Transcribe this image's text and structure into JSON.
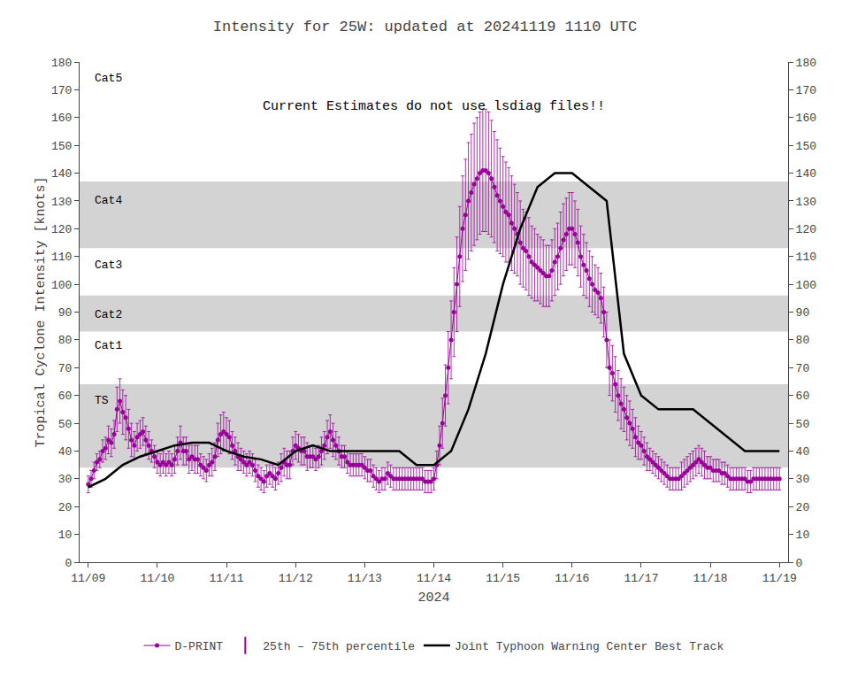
{
  "chart_data": {
    "type": "line",
    "title": "Intensity for 25W: updated at 20241119 1110 UTC",
    "xlabel": "2024",
    "ylabel": "Tropical Cyclone Intensity [knots]",
    "annotation": "Current Estimates do not use lsdiag files!!",
    "xlim": [
      -3,
      243
    ],
    "xticks": [
      {
        "value": 0,
        "label": "11/09"
      },
      {
        "value": 24,
        "label": "11/10"
      },
      {
        "value": 48,
        "label": "11/11"
      },
      {
        "value": 72,
        "label": "11/12"
      },
      {
        "value": 96,
        "label": "11/13"
      },
      {
        "value": 120,
        "label": "11/14"
      },
      {
        "value": 144,
        "label": "11/15"
      },
      {
        "value": 168,
        "label": "11/16"
      },
      {
        "value": 192,
        "label": "11/17"
      },
      {
        "value": 216,
        "label": "11/18"
      },
      {
        "value": 240,
        "label": "11/19"
      }
    ],
    "ylim": [
      0,
      180
    ],
    "yticks": [
      0,
      10,
      20,
      30,
      40,
      50,
      60,
      70,
      80,
      90,
      100,
      110,
      120,
      130,
      140,
      150,
      160,
      170,
      180
    ],
    "y2lim": [
      0,
      180
    ],
    "y2ticks": [
      0,
      10,
      20,
      30,
      40,
      50,
      60,
      70,
      80,
      90,
      100,
      110,
      120,
      130,
      140,
      150,
      160,
      170,
      180
    ],
    "grid": false,
    "legend": "bottom",
    "bands": {
      "color": "#d3d3d3",
      "ranges": [
        [
          34,
          64
        ],
        [
          83,
          96
        ],
        [
          113,
          137
        ]
      ]
    },
    "labels": [
      {
        "text": "TS",
        "x": 1.5,
        "y": 58
      },
      {
        "text": "Cat1",
        "x": 1.5,
        "y": 78
      },
      {
        "text": "Cat2",
        "x": 1.5,
        "y": 89
      },
      {
        "text": "Cat3",
        "x": 1.5,
        "y": 107
      },
      {
        "text": "Cat4",
        "x": 1.5,
        "y": 130
      },
      {
        "text": "Cat5",
        "x": 1.5,
        "y": 174
      }
    ],
    "series": [
      {
        "name": "D-PRINT",
        "color": "#990099",
        "marker": "circle",
        "error_name": "25th – 75th percentile",
        "x": [
          0,
          1,
          2,
          3,
          4,
          5,
          6,
          7,
          8,
          9,
          10,
          11,
          12,
          13,
          14,
          15,
          16,
          17,
          18,
          19,
          20,
          21,
          22,
          23,
          24,
          25,
          26,
          27,
          28,
          29,
          30,
          31,
          32,
          33,
          34,
          35,
          36,
          37,
          38,
          39,
          40,
          41,
          42,
          43,
          44,
          45,
          46,
          47,
          48,
          49,
          50,
          51,
          52,
          53,
          54,
          55,
          56,
          57,
          58,
          59,
          60,
          61,
          62,
          63,
          64,
          65,
          66,
          67,
          68,
          69,
          70,
          71,
          72,
          73,
          74,
          75,
          76,
          77,
          78,
          79,
          80,
          81,
          82,
          83,
          84,
          85,
          86,
          87,
          88,
          89,
          90,
          91,
          92,
          93,
          94,
          95,
          96,
          97,
          98,
          99,
          100,
          101,
          102,
          103,
          104,
          105,
          106,
          107,
          108,
          109,
          110,
          111,
          112,
          113,
          114,
          115,
          116,
          117,
          118,
          119,
          120,
          121,
          122,
          123,
          124,
          125,
          126,
          127,
          128,
          129,
          130,
          131,
          132,
          133,
          134,
          135,
          136,
          137,
          138,
          139,
          140,
          141,
          142,
          143,
          144,
          145,
          146,
          147,
          148,
          149,
          150,
          151,
          152,
          153,
          154,
          155,
          156,
          157,
          158,
          159,
          160,
          161,
          162,
          163,
          164,
          165,
          166,
          167,
          168,
          169,
          170,
          171,
          172,
          173,
          174,
          175,
          176,
          177,
          178,
          179,
          180,
          181,
          182,
          183,
          184,
          185,
          186,
          187,
          188,
          189,
          190,
          191,
          192,
          193,
          194,
          195,
          196,
          197,
          198,
          199,
          200,
          201,
          202,
          203,
          204,
          205,
          206,
          207,
          208,
          209,
          210,
          211,
          212,
          213,
          214,
          215,
          216,
          217,
          218,
          219,
          220,
          221,
          222,
          223,
          224,
          225,
          226,
          227,
          228,
          229,
          230,
          231,
          232,
          233,
          234,
          235,
          236,
          237,
          238,
          239,
          240
        ],
        "values": [
          28,
          30,
          33,
          36,
          37,
          40,
          41,
          44,
          43,
          46,
          55,
          58,
          54,
          52,
          48,
          44,
          42,
          45,
          46,
          47,
          44,
          42,
          40,
          38,
          36,
          35,
          36,
          35,
          36,
          35,
          37,
          40,
          43,
          40,
          40,
          37,
          38,
          37,
          37,
          35,
          34,
          33,
          35,
          36,
          38,
          44,
          46,
          47,
          46,
          45,
          42,
          40,
          38,
          37,
          36,
          35,
          36,
          35,
          33,
          31,
          30,
          29,
          31,
          32,
          31,
          30,
          32,
          34,
          36,
          35,
          35,
          40,
          42,
          41,
          40,
          40,
          38,
          38,
          38,
          37,
          38,
          40,
          42,
          45,
          47,
          44,
          42,
          40,
          38,
          38,
          36,
          35,
          35,
          35,
          35,
          35,
          34,
          33,
          33,
          31,
          30,
          29,
          30,
          30,
          32,
          31,
          30,
          30,
          30,
          30,
          30,
          30,
          30,
          30,
          30,
          30,
          30,
          29,
          29,
          29,
          30,
          35,
          42,
          50,
          60,
          70,
          80,
          90,
          100,
          110,
          120,
          125,
          130,
          133,
          136,
          138,
          140,
          141,
          141,
          140,
          138,
          135,
          132,
          130,
          128,
          126,
          125,
          122,
          120,
          118,
          115,
          113,
          112,
          110,
          108,
          107,
          106,
          105,
          104,
          103,
          103,
          105,
          108,
          110,
          113,
          116,
          118,
          120,
          120,
          118,
          115,
          110,
          107,
          105,
          102,
          100,
          98,
          97,
          95,
          90,
          80,
          70,
          68,
          64,
          60,
          57,
          55,
          52,
          50,
          48,
          45,
          43,
          42,
          40,
          38,
          37,
          36,
          35,
          34,
          33,
          32,
          31,
          30,
          30,
          30,
          30,
          31,
          32,
          33,
          34,
          35,
          36,
          37,
          36,
          35,
          34,
          34,
          33,
          33,
          33,
          32,
          32,
          31,
          30,
          30,
          30,
          30,
          30,
          30,
          29,
          29,
          30,
          30,
          30,
          30,
          30,
          30,
          30,
          30,
          30,
          30
        ],
        "error_low": [
          3,
          3,
          3,
          3,
          3,
          4,
          4,
          5,
          5,
          5,
          8,
          8,
          8,
          8,
          7,
          6,
          5,
          5,
          5,
          5,
          5,
          5,
          4,
          4,
          4,
          4,
          4,
          4,
          4,
          4,
          5,
          5,
          6,
          5,
          5,
          5,
          5,
          5,
          5,
          4,
          4,
          4,
          4,
          5,
          5,
          6,
          7,
          7,
          6,
          6,
          5,
          5,
          5,
          4,
          4,
          4,
          4,
          4,
          4,
          4,
          4,
          4,
          4,
          4,
          4,
          4,
          4,
          5,
          5,
          5,
          5,
          5,
          5,
          5,
          5,
          5,
          5,
          4,
          4,
          4,
          4,
          5,
          5,
          6,
          6,
          6,
          5,
          5,
          4,
          4,
          4,
          4,
          4,
          4,
          4,
          4,
          4,
          4,
          4,
          4,
          4,
          4,
          4,
          4,
          4,
          4,
          4,
          4,
          4,
          4,
          4,
          4,
          4,
          4,
          4,
          4,
          4,
          4,
          4,
          4,
          4,
          5,
          7,
          9,
          11,
          13,
          14,
          16,
          17,
          18,
          19,
          20,
          21,
          21,
          22,
          22,
          22,
          22,
          22,
          22,
          21,
          20,
          20,
          19,
          18,
          18,
          17,
          17,
          16,
          15,
          15,
          14,
          14,
          14,
          13,
          13,
          12,
          12,
          12,
          11,
          11,
          11,
          12,
          12,
          13,
          13,
          13,
          13,
          13,
          12,
          12,
          11,
          11,
          10,
          10,
          10,
          9,
          9,
          9,
          9,
          10,
          10,
          10,
          10,
          9,
          9,
          8,
          8,
          8,
          7,
          7,
          6,
          5,
          5,
          5,
          4,
          4,
          4,
          4,
          4,
          4,
          4,
          4,
          4,
          4,
          4,
          5,
          5,
          5,
          5,
          5,
          5,
          5,
          5,
          5,
          4,
          4,
          4,
          4,
          4,
          4,
          4,
          4,
          4,
          4,
          4,
          4,
          4,
          4,
          4,
          4,
          4,
          4,
          4,
          4,
          4,
          4,
          4,
          4,
          4,
          4
        ],
        "error_high": [
          3,
          3,
          3,
          3,
          3,
          4,
          4,
          5,
          5,
          5,
          8,
          8,
          8,
          8,
          7,
          6,
          5,
          5,
          5,
          5,
          5,
          5,
          4,
          4,
          4,
          4,
          4,
          4,
          4,
          4,
          5,
          5,
          6,
          5,
          5,
          5,
          5,
          5,
          5,
          4,
          4,
          4,
          4,
          5,
          5,
          6,
          7,
          7,
          6,
          6,
          5,
          5,
          5,
          4,
          4,
          4,
          4,
          4,
          4,
          4,
          4,
          4,
          4,
          4,
          4,
          4,
          4,
          5,
          5,
          5,
          5,
          5,
          5,
          5,
          5,
          5,
          5,
          4,
          4,
          4,
          4,
          5,
          5,
          6,
          6,
          6,
          5,
          5,
          4,
          4,
          4,
          4,
          4,
          4,
          4,
          4,
          4,
          4,
          4,
          4,
          4,
          4,
          4,
          4,
          4,
          4,
          4,
          4,
          4,
          4,
          4,
          4,
          4,
          4,
          4,
          4,
          4,
          4,
          4,
          4,
          4,
          5,
          7,
          9,
          11,
          13,
          14,
          16,
          17,
          18,
          19,
          20,
          21,
          21,
          22,
          22,
          22,
          22,
          22,
          22,
          21,
          20,
          20,
          19,
          18,
          18,
          17,
          17,
          16,
          15,
          15,
          14,
          14,
          14,
          13,
          13,
          12,
          12,
          12,
          11,
          11,
          11,
          12,
          12,
          13,
          13,
          13,
          13,
          13,
          12,
          12,
          11,
          11,
          10,
          10,
          10,
          9,
          9,
          9,
          9,
          10,
          10,
          10,
          10,
          9,
          9,
          8,
          8,
          8,
          7,
          7,
          6,
          5,
          5,
          5,
          4,
          4,
          4,
          4,
          4,
          4,
          4,
          4,
          4,
          4,
          4,
          5,
          5,
          5,
          5,
          5,
          5,
          5,
          5,
          5,
          4,
          4,
          4,
          4,
          4,
          4,
          4,
          4,
          4,
          4,
          4,
          4,
          4,
          4,
          4,
          4,
          4,
          4,
          4,
          4,
          4,
          4,
          4,
          4,
          4,
          4
        ]
      },
      {
        "name": "Joint Typhoon Warning Center Best Track",
        "color": "#000000",
        "x": [
          0,
          6,
          12,
          18,
          24,
          30,
          36,
          42,
          48,
          54,
          60,
          66,
          72,
          78,
          84,
          90,
          96,
          102,
          108,
          114,
          120,
          126,
          132,
          138,
          144,
          150,
          156,
          162,
          168,
          174,
          180,
          186,
          192,
          198,
          204,
          210,
          216,
          222,
          228,
          234,
          240
        ],
        "values": [
          27,
          30,
          35,
          38,
          40,
          42,
          43,
          43,
          40,
          38,
          37,
          35,
          40,
          42,
          40,
          40,
          40,
          40,
          40,
          35,
          35,
          40,
          55,
          75,
          100,
          120,
          135,
          140,
          140,
          135,
          130,
          75,
          60,
          55,
          55,
          55,
          50,
          45,
          40,
          40,
          40
        ]
      }
    ]
  }
}
